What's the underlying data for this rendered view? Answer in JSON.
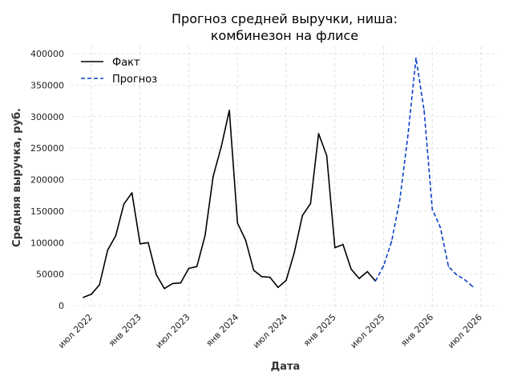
{
  "chart_data": {
    "type": "line",
    "title_line1": "Прогноз средней выручки, ниша:",
    "title_line2": "комбинезон на флисе",
    "xlabel": "Дата",
    "ylabel": "Средняя выручка, руб.",
    "ylim": [
      0,
      400000
    ],
    "yticks": [
      0,
      50000,
      100000,
      150000,
      200000,
      250000,
      300000,
      350000,
      400000
    ],
    "ytick_labels": [
      "0",
      "50000",
      "100000",
      "150000",
      "200000",
      "250000",
      "300000",
      "350000",
      "400000"
    ],
    "xticks": [
      "2022-07",
      "2023-01",
      "2023-07",
      "2024-01",
      "2024-07",
      "2025-01",
      "2025-07",
      "2026-01",
      "2026-07"
    ],
    "xtick_labels": [
      "июл 2022",
      "янв 2023",
      "июл 2023",
      "янв 2024",
      "июл 2024",
      "янв 2025",
      "июл 2025",
      "янв 2026",
      "июл 2026"
    ],
    "grid": true,
    "legend_position": "top-left",
    "series": [
      {
        "name": "Факт",
        "color": "#000000",
        "style": "solid",
        "points": [
          [
            "2022-06",
            13000
          ],
          [
            "2022-07",
            18000
          ],
          [
            "2022-08",
            33000
          ],
          [
            "2022-09",
            88000
          ],
          [
            "2022-10",
            111000
          ],
          [
            "2022-11",
            161000
          ],
          [
            "2022-12",
            179000
          ],
          [
            "2023-01",
            98000
          ],
          [
            "2023-02",
            100000
          ],
          [
            "2023-03",
            49000
          ],
          [
            "2023-04",
            27000
          ],
          [
            "2023-05",
            35000
          ],
          [
            "2023-06",
            36000
          ],
          [
            "2023-07",
            59000
          ],
          [
            "2023-08",
            62000
          ],
          [
            "2023-09",
            111000
          ],
          [
            "2023-10",
            205000
          ],
          [
            "2023-11",
            252000
          ],
          [
            "2023-12",
            310000
          ],
          [
            "2024-01",
            131000
          ],
          [
            "2024-02",
            104000
          ],
          [
            "2024-03",
            56000
          ],
          [
            "2024-04",
            46000
          ],
          [
            "2024-05",
            45000
          ],
          [
            "2024-06",
            29000
          ],
          [
            "2024-07",
            40000
          ],
          [
            "2024-08",
            84000
          ],
          [
            "2024-09",
            143000
          ],
          [
            "2024-10",
            162000
          ],
          [
            "2024-11",
            273000
          ],
          [
            "2024-12",
            238000
          ],
          [
            "2025-01",
            92000
          ],
          [
            "2025-02",
            97000
          ],
          [
            "2025-03",
            58000
          ],
          [
            "2025-04",
            43000
          ],
          [
            "2025-05",
            54000
          ],
          [
            "2025-06",
            39000
          ]
        ]
      },
      {
        "name": "Прогноз",
        "color": "#0b3fc7",
        "style": "dashed",
        "points": [
          [
            "2025-06",
            39000
          ],
          [
            "2025-07",
            63000
          ],
          [
            "2025-08",
            102000
          ],
          [
            "2025-09",
            168000
          ],
          [
            "2025-10",
            270000
          ],
          [
            "2025-11",
            393000
          ],
          [
            "2025-12",
            310000
          ],
          [
            "2026-01",
            153000
          ],
          [
            "2026-02",
            124000
          ],
          [
            "2026-03",
            62000
          ],
          [
            "2026-04",
            49000
          ],
          [
            "2026-05",
            41000
          ],
          [
            "2026-06",
            30000
          ]
        ]
      }
    ]
  }
}
